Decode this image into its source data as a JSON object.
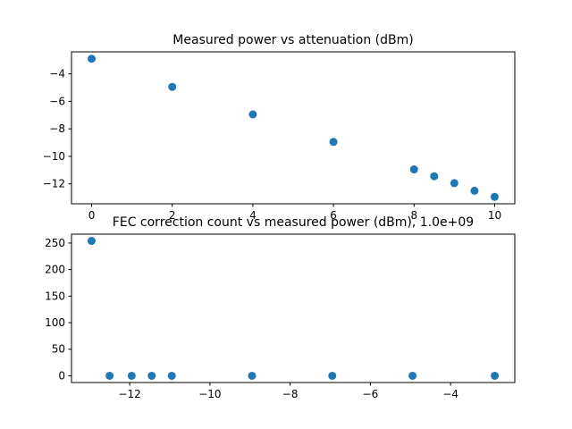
{
  "chart_data": [
    {
      "type": "scatter",
      "title": "Measured power vs attenuation (dBm)",
      "xlabel": "",
      "ylabel": "",
      "x": [
        0,
        2,
        4,
        6,
        8,
        8.5,
        9,
        9.5,
        10
      ],
      "y": [
        -2.9,
        -4.95,
        -6.95,
        -8.95,
        -10.95,
        -11.45,
        -11.95,
        -12.5,
        -12.95
      ],
      "xlim": [
        -0.5,
        10.5
      ],
      "ylim": [
        -13.45,
        -2.4
      ],
      "xticks": [
        0,
        2,
        4,
        6,
        8,
        10
      ],
      "xtick_labels": [
        "0",
        "2",
        "4",
        "6",
        "8",
        "10"
      ],
      "yticks": [
        -12,
        -10,
        -8,
        -6,
        -4
      ],
      "ytick_labels": [
        "−12",
        "−10",
        "−8",
        "−6",
        "−4"
      ],
      "grid": false,
      "color": "#1f77b4"
    },
    {
      "type": "scatter",
      "title": "FEC correction count vs measured power (dBm), 1.0e+09",
      "xlabel": "",
      "ylabel": "",
      "x": [
        -12.95,
        -12.5,
        -11.95,
        -11.45,
        -10.95,
        -8.95,
        -6.95,
        -4.95,
        -2.9
      ],
      "y": [
        254,
        0,
        0,
        0,
        0,
        0,
        0,
        0,
        0
      ],
      "xlim": [
        -13.45,
        -2.4
      ],
      "ylim": [
        -12.7,
        266.7
      ],
      "xticks": [
        -12,
        -10,
        -8,
        -6,
        -4
      ],
      "xtick_labels": [
        "−12",
        "−10",
        "−8",
        "−6",
        "−4"
      ],
      "yticks": [
        0,
        50,
        100,
        150,
        200,
        250
      ],
      "ytick_labels": [
        "0",
        "50",
        "100",
        "150",
        "200",
        "250"
      ],
      "grid": false,
      "color": "#1f77b4"
    }
  ]
}
